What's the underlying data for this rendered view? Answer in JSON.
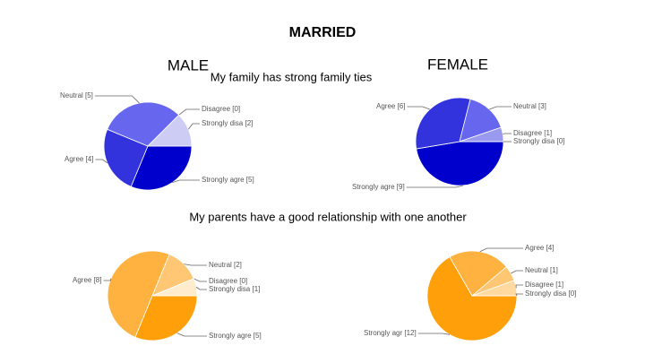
{
  "heading": "MARRIED",
  "columns": [
    "MALE",
    "FEMALE"
  ],
  "questions": [
    "My family has strong family ties",
    "My parents have a good relationship with one another"
  ],
  "chart_data": [
    {
      "type": "pie",
      "values": [
        5,
        4,
        5,
        0,
        2
      ],
      "value_labels": [
        "Strongly agre [5]",
        "Agree [4]",
        "Neutral [5]",
        "Disagree [0]",
        "Strongly disa [2]"
      ],
      "colors": [
        "#0000cc",
        "#3333dd",
        "#6666ee",
        "#9999f0",
        "#ccccf5"
      ]
    },
    {
      "type": "pie",
      "values": [
        9,
        6,
        3,
        1,
        0
      ],
      "value_labels": [
        "Strongly agre [9]",
        "Agree [6]",
        "Neutral [3]",
        "Disagree [1]",
        "Strongly disa [0]"
      ],
      "colors": [
        "#0000cc",
        "#3333dd",
        "#6666ee",
        "#9999f0",
        "#ccccf5"
      ]
    },
    {
      "type": "pie",
      "values": [
        5,
        8,
        2,
        0,
        1
      ],
      "value_labels": [
        "Strongly agre [5]",
        "Agree [8]",
        "Neutral [2]",
        "Disagree [0]",
        "Strongly disa [1]"
      ],
      "colors": [
        "#ff9f0a",
        "#ffb23f",
        "#ffc773",
        "#ffd9a0",
        "#ffeccc"
      ]
    },
    {
      "type": "pie",
      "values": [
        12,
        4,
        1,
        1,
        0
      ],
      "value_labels": [
        "Strongly agr [12]",
        "Agree [4]",
        "Neutral [1]",
        "Disagree [1]",
        "Strongly disa [0]"
      ],
      "colors": [
        "#ff9f0a",
        "#ffb23f",
        "#ffc773",
        "#ffd9a0",
        "#ffeccc"
      ]
    }
  ]
}
